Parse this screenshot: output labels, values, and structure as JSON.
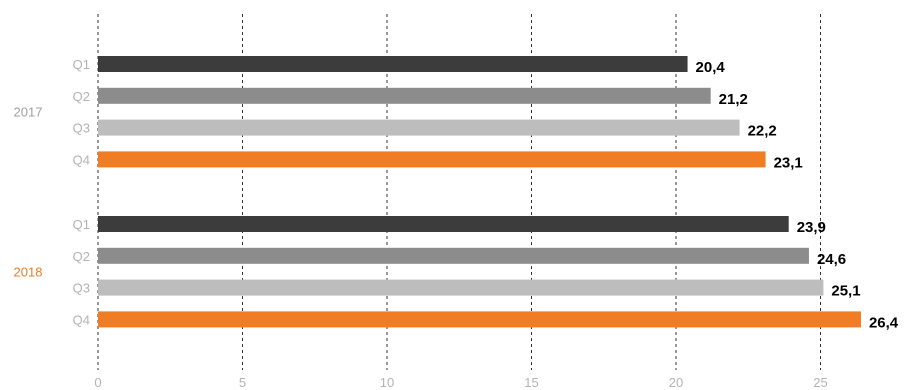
{
  "chart_data": {
    "type": "bar",
    "orientation": "horizontal",
    "xlim": [
      0,
      26.4
    ],
    "x_ticks": [
      "0",
      "5",
      "10",
      "15",
      "20",
      "25"
    ],
    "x_tick_values": [
      0,
      5,
      10,
      15,
      20,
      25
    ],
    "grid": "vertical dashed",
    "groups": [
      {
        "name": "2017",
        "color": "#a0a0a0",
        "bars": [
          {
            "category": "Q1",
            "value": 20.4,
            "label": "20,4",
            "color": "#3c3c3c"
          },
          {
            "category": "Q2",
            "value": 21.2,
            "label": "21,2",
            "color": "#8c8c8c"
          },
          {
            "category": "Q3",
            "value": 22.2,
            "label": "22,2",
            "color": "#bdbdbd"
          },
          {
            "category": "Q4",
            "value": 23.1,
            "label": "23,1",
            "color": "#f07c24"
          }
        ]
      },
      {
        "name": "2018",
        "color": "#f07c24",
        "bars": [
          {
            "category": "Q1",
            "value": 23.9,
            "label": "23,9",
            "color": "#3c3c3c"
          },
          {
            "category": "Q2",
            "value": 24.6,
            "label": "24,6",
            "color": "#8c8c8c"
          },
          {
            "category": "Q3",
            "value": 25.1,
            "label": "25,1",
            "color": "#bdbdbd"
          },
          {
            "category": "Q4",
            "value": 26.4,
            "label": "26,4",
            "color": "#f07c24"
          }
        ]
      }
    ]
  }
}
